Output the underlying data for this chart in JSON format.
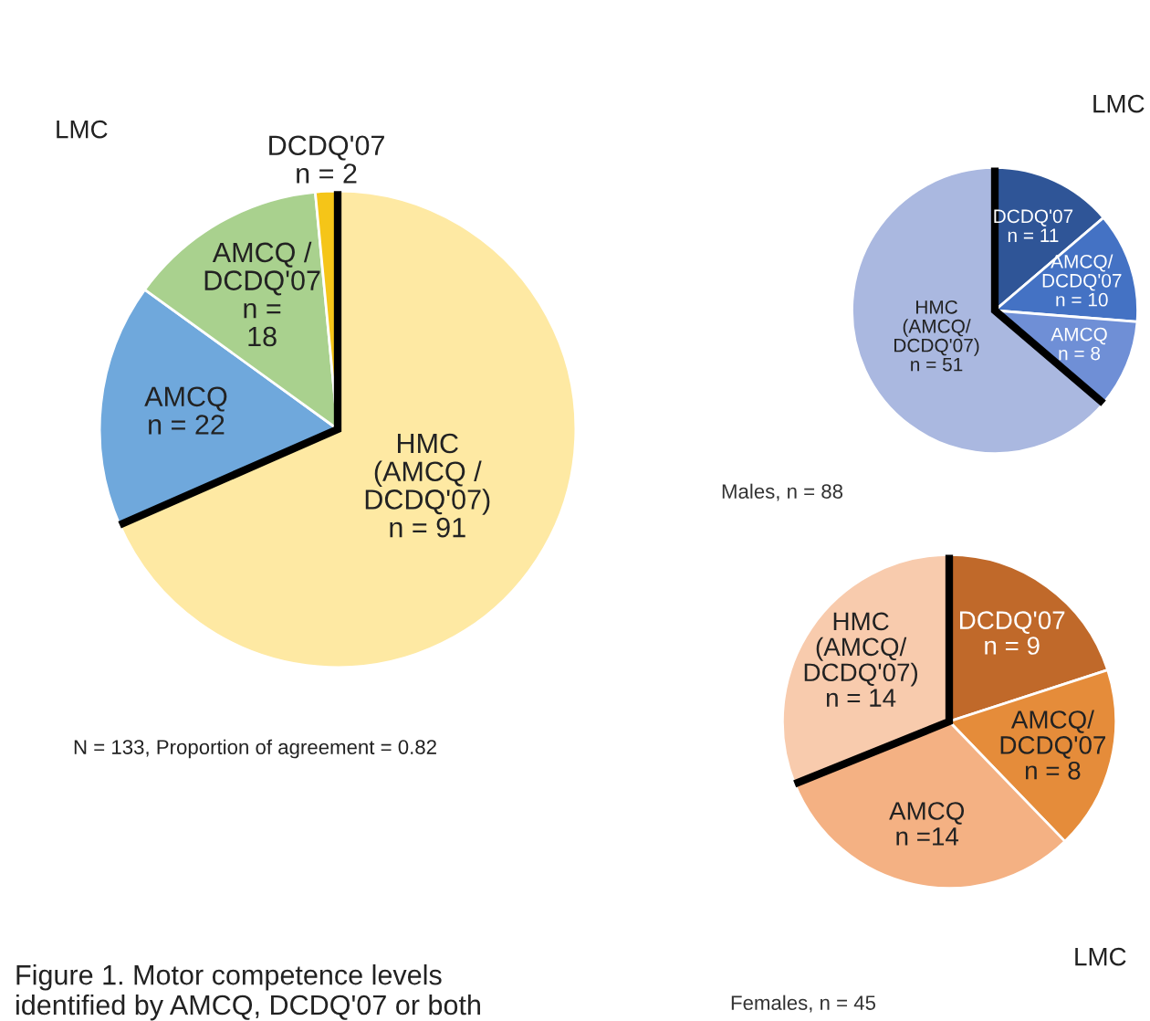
{
  "chart_data": [
    {
      "type": "pie",
      "categories": [
        "HMC\n(AMCQ /\nDCDQ'07)",
        "AMCQ",
        "AMCQ /\nDCDQ'07",
        "DCDQ'07"
      ],
      "values": [
        91,
        22,
        18,
        2
      ],
      "value_labels": [
        "n = 91",
        "n = 22",
        "n =\n18",
        "n = 2"
      ],
      "colors": [
        "#fee9a3",
        "#6fa8dc",
        "#a9d18e",
        "#f5c518"
      ],
      "annotations": [
        "LMC",
        "N = 133, Proportion of agreement = 0.82",
        "Figure 1. Motor competence levels\nidentified by AMCQ, DCDQ'07 or both"
      ]
    },
    {
      "type": "pie",
      "title": "Males, n = 88",
      "categories": [
        "DCDQ'07",
        "AMCQ/\nDCDQ'07",
        "AMCQ",
        "HMC\n(AMCQ/\nDCDQ'07)"
      ],
      "values": [
        11,
        10,
        8,
        51
      ],
      "value_labels": [
        "n = 11",
        "n = 10",
        "n = 8",
        "n = 51"
      ],
      "colors": [
        "#2f5597",
        "#4472c4",
        "#6f8fd6",
        "#aab8e0"
      ],
      "annotations": [
        "LMC"
      ]
    },
    {
      "type": "pie",
      "title": "Females, n = 45",
      "categories": [
        "DCDQ'07",
        "AMCQ/\nDCDQ'07",
        "AMCQ",
        "HMC\n(AMCQ/\nDCDQ'07)"
      ],
      "values": [
        9,
        8,
        14,
        14
      ],
      "value_labels": [
        "n = 9",
        "n = 8",
        "n =14",
        "n = 14"
      ],
      "colors": [
        "#c0692a",
        "#e58c3a",
        "#f4b183",
        "#f8cbad"
      ],
      "annotations": [
        "LMC"
      ]
    }
  ]
}
